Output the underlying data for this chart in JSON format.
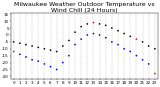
{
  "title": "Milwaukee Weather Outdoor Temperature vs Wind Chill (24 Hours)",
  "background_color": "#ffffff",
  "grid_color": "#888888",
  "temp_color": "#000000",
  "windchill_color": "#0000cc",
  "highlight_color": "#ff0000",
  "hours": [
    0,
    1,
    2,
    3,
    4,
    5,
    6,
    7,
    8,
    9,
    10,
    11,
    12,
    13,
    14,
    15,
    16,
    17,
    18,
    19,
    20,
    21,
    22,
    23
  ],
  "xlim": [
    -0.5,
    23.5
  ],
  "ylim": [
    -32,
    16
  ],
  "yticks": [
    -30,
    -25,
    -20,
    -15,
    -10,
    -5,
    0,
    5,
    10,
    15
  ],
  "xtick_labels": [
    "0",
    "1",
    "2",
    "3",
    "4",
    "5",
    "6",
    "7",
    "8",
    "9",
    "10",
    "11",
    "12",
    "13",
    "14",
    "15",
    "16",
    "17",
    "18",
    "19",
    "20",
    "21",
    "22",
    "23"
  ],
  "outdoor_temp": [
    -5,
    -6,
    -7,
    -8,
    -9,
    -10,
    -11,
    -12,
    -8,
    -4,
    2,
    6,
    8,
    9,
    8,
    7,
    5,
    3,
    1,
    -1,
    -3,
    -5,
    -8,
    -10
  ],
  "wind_chill": [
    -12,
    -14,
    -16,
    -18,
    -19,
    -21,
    -23,
    -25,
    -20,
    -15,
    -7,
    -3,
    0,
    1,
    0,
    -2,
    -5,
    -7,
    -10,
    -12,
    -15,
    -18,
    -21,
    -28
  ],
  "red_temp_hours": [
    13,
    20
  ],
  "red_wc_hours": [
    0,
    23
  ],
  "title_fontsize": 4.5,
  "tick_fontsize": 3,
  "marker_size": 1.5,
  "figsize": [
    1.6,
    0.87
  ],
  "dpi": 100
}
